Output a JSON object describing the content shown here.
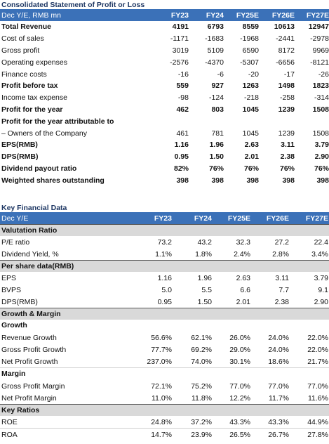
{
  "part1": {
    "title": "Consolidated Statement of Profit or Loss",
    "header": {
      "label": "Dec Y/E, RMB mn",
      "cols": [
        "FY23",
        "FY24",
        "FY25E",
        "FY26E",
        "FY27E"
      ]
    },
    "rows": [
      {
        "label": "Total Revenue",
        "bold": true,
        "v": [
          "4191",
          "6793",
          "8559",
          "10613",
          "12947"
        ]
      },
      {
        "label": "Cost of sales",
        "bold": false,
        "v": [
          "-1171",
          "-1683",
          "-1968",
          "-2441",
          "-2978"
        ]
      },
      {
        "label": "Gross profit",
        "bold": false,
        "v": [
          "3019",
          "5109",
          "6590",
          "8172",
          "9969"
        ]
      },
      {
        "label": "Operating expenses",
        "bold": false,
        "v": [
          "-2576",
          "-4370",
          "-5307",
          "-6656",
          "-8121"
        ]
      },
      {
        "label": "Finance costs",
        "bold": false,
        "v": [
          "-16",
          "-6",
          "-20",
          "-17",
          "-26"
        ]
      },
      {
        "label": "Profit before tax",
        "bold": true,
        "v": [
          "559",
          "927",
          "1263",
          "1498",
          "1823"
        ]
      },
      {
        "label": "Income tax expense",
        "bold": false,
        "v": [
          "-98",
          "-124",
          "-218",
          "-258",
          "-314"
        ]
      },
      {
        "label": "Profit for the year",
        "bold": true,
        "v": [
          "462",
          "803",
          "1045",
          "1239",
          "1508"
        ]
      },
      {
        "label": "Profit for the year attributable to",
        "bold": true,
        "v": [
          "",
          "",
          "",
          "",
          ""
        ]
      },
      {
        "label": "– Owners of the Company",
        "bold": false,
        "v": [
          "461",
          "781",
          "1045",
          "1239",
          "1508"
        ]
      },
      {
        "label": "EPS(RMB)",
        "bold": true,
        "v": [
          "1.16",
          "1.96",
          "2.63",
          "3.11",
          "3.79"
        ]
      },
      {
        "label": "DPS(RMB)",
        "bold": true,
        "v": [
          "0.95",
          "1.50",
          "2.01",
          "2.38",
          "2.90"
        ]
      },
      {
        "label": "Dividend payout ratio",
        "bold": true,
        "v": [
          "82%",
          "76%",
          "76%",
          "76%",
          "76%"
        ]
      },
      {
        "label": "Weighted shares outstanding",
        "bold": true,
        "v": [
          "398",
          "398",
          "398",
          "398",
          "398"
        ]
      }
    ]
  },
  "part2": {
    "title": "Key Financial Data",
    "header": {
      "label": "Dec Y/E",
      "cols": [
        "FY23",
        "FY24",
        "FY25E",
        "FY26E",
        "FY27E"
      ]
    },
    "valuation": {
      "title": "Valutation Ratio",
      "rows": [
        {
          "label": "P/E ratio",
          "v": [
            "73.2",
            "43.2",
            "32.3",
            "27.2",
            "22.4"
          ]
        },
        {
          "label": "Dividend Yield, %",
          "v": [
            "1.1%",
            "1.8%",
            "2.4%",
            "2.8%",
            "3.4%"
          ]
        }
      ]
    },
    "per_share": {
      "title": "Per share data(RMB)",
      "rows": [
        {
          "label": "EPS",
          "v": [
            "1.16",
            "1.96",
            "2.63",
            "3.11",
            "3.79"
          ]
        },
        {
          "label": "BVPS",
          "v": [
            "5.0",
            "5.5",
            "6.6",
            "7.7",
            "9.1"
          ]
        },
        {
          "label": "DPS(RMB)",
          "v": [
            "0.95",
            "1.50",
            "2.01",
            "2.38",
            "2.90"
          ]
        }
      ]
    },
    "growth_margin": {
      "title": "Growth & Margin",
      "growth_title": "Growth",
      "growth_rows": [
        {
          "label": "Revenue Growth",
          "v": [
            "56.6%",
            "62.1%",
            "26.0%",
            "24.0%",
            "22.0%"
          ]
        },
        {
          "label": "Gross Profit Growth",
          "v": [
            "77.7%",
            "69.2%",
            "29.0%",
            "24.0%",
            "22.0%"
          ]
        },
        {
          "label": "Net Profit Growth",
          "v": [
            "237.0%",
            "74.0%",
            "30.1%",
            "18.6%",
            "21.7%"
          ]
        }
      ],
      "margin_title": "Margin",
      "margin_rows": [
        {
          "label": "Gross Profit Margin",
          "v": [
            "72.1%",
            "75.2%",
            "77.0%",
            "77.0%",
            "77.0%"
          ]
        },
        {
          "label": "Net Profit Margin",
          "v": [
            "11.0%",
            "11.8%",
            "12.2%",
            "11.7%",
            "11.6%"
          ]
        }
      ]
    },
    "key_ratios": {
      "title": "Key Ratios",
      "rows": [
        {
          "label": "ROE",
          "v": [
            "24.8%",
            "37.2%",
            "43.3%",
            "43.3%",
            "44.9%"
          ]
        },
        {
          "label": "ROA",
          "v": [
            "14.7%",
            "23.9%",
            "26.5%",
            "26.7%",
            "27.8%"
          ]
        }
      ]
    }
  }
}
